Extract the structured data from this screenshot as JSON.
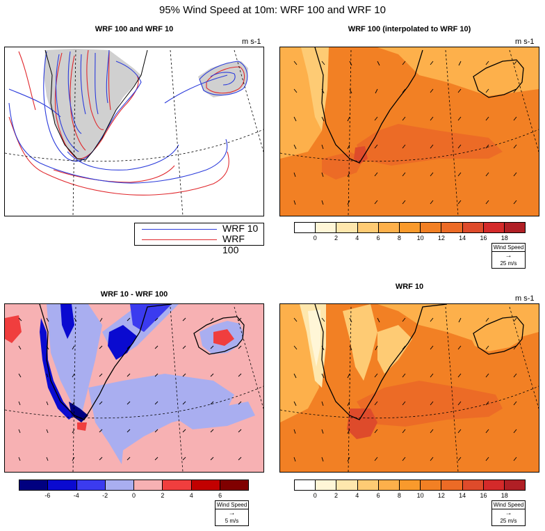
{
  "title": "95% Wind Speed at 10m: WRF 100 and WRF 10",
  "units_label": "m s-1",
  "panels": {
    "contours": {
      "title": "WRF 100 and WRF 10"
    },
    "wrf100": {
      "title": "WRF 100 (interpolated to WRF 10)"
    },
    "diff": {
      "title": "WRF 10 - WRF 100"
    },
    "wrf10": {
      "title": "WRF 10"
    }
  },
  "legend": {
    "wrf10": {
      "label": "WRF 10",
      "color": "#2b3bdb"
    },
    "wrf100": {
      "label": "WRF 100",
      "color": "#e0262b"
    }
  },
  "speed_colorbar": {
    "colors": [
      "#ffffff",
      "#fff6d7",
      "#fee7ad",
      "#fecb74",
      "#fdb04b",
      "#f99a2c",
      "#f28024",
      "#ec6b26",
      "#de4b2b",
      "#d42a2a",
      "#b01f25"
    ],
    "ticks": [
      "0",
      "2",
      "4",
      "6",
      "8",
      "10",
      "12",
      "14",
      "16",
      "18"
    ]
  },
  "diff_colorbar": {
    "colors": [
      "#000080",
      "#0a0ad0",
      "#3b3bef",
      "#a9aef0",
      "#f7b1b3",
      "#f03e3e",
      "#c20000",
      "#800000"
    ],
    "ticks": [
      "-6",
      "-4",
      "-2",
      "0",
      "2",
      "4",
      "6"
    ]
  },
  "ref_vector": {
    "title": "Wind Speed",
    "speed_label": "25 m/s",
    "diff_label": "5 m/s"
  }
}
